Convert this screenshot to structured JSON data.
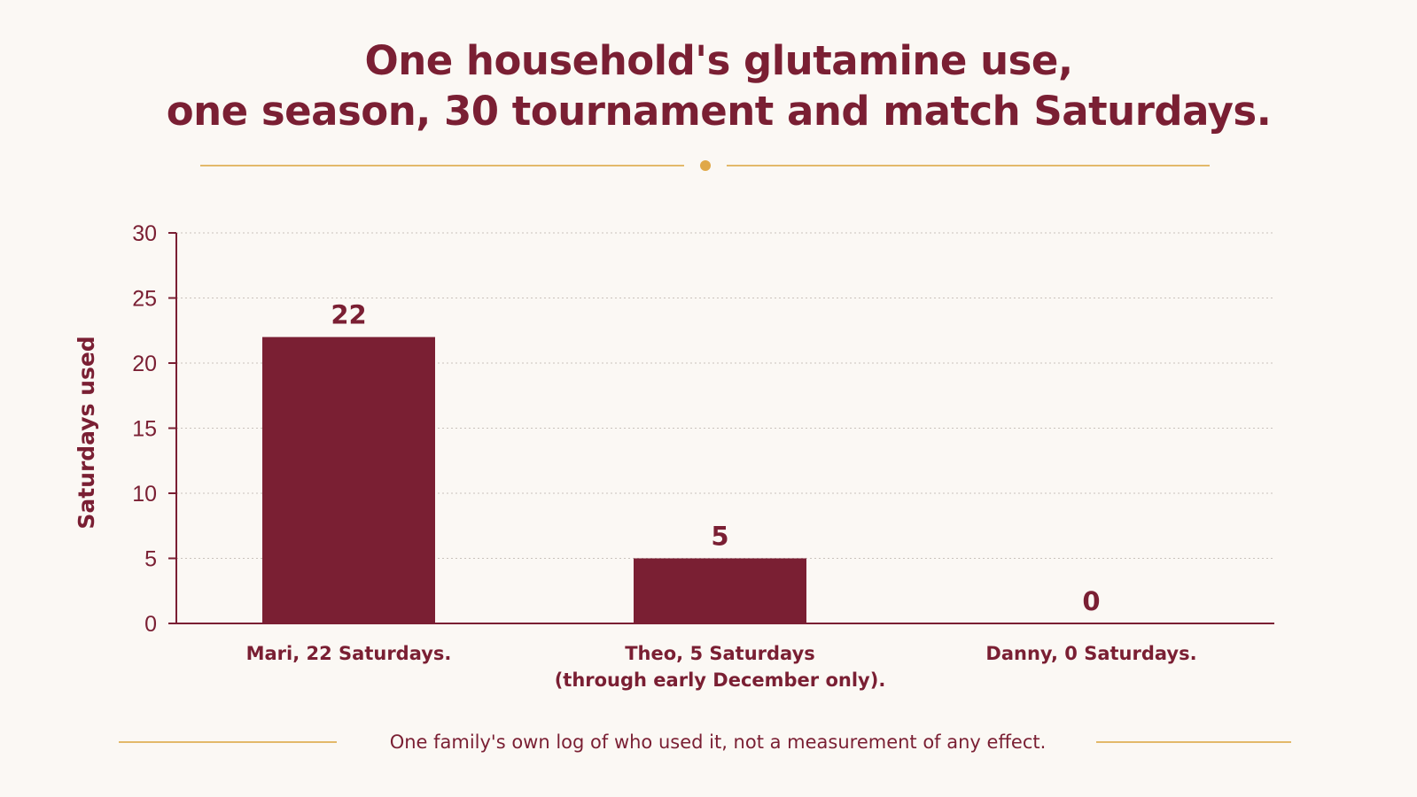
{
  "header": {
    "title_line_1": "One household's glutamine use,",
    "title_line_2": "one season, 30 tournament and match Saturdays."
  },
  "footnote": "One family's own log of who used it, not a measurement of any effect.",
  "colors": {
    "bar": "#7A1F33",
    "text": "#7A1F33",
    "accent": "#E0A848",
    "rule": "#E3B96A",
    "grid": "#C9C2BC",
    "background": "#FBF8F4"
  },
  "chart_data": {
    "type": "bar",
    "categories": [
      [
        "Mari, 22 Saturdays."
      ],
      [
        "Theo, 5 Saturdays",
        "(through early December only)."
      ],
      [
        "Danny, 0 Saturdays."
      ]
    ],
    "values": [
      22,
      5,
      0
    ],
    "value_labels": [
      "22",
      "5",
      "0"
    ],
    "title": "One household's glutamine use, one season, 30 tournament and match Saturdays.",
    "xlabel": "",
    "ylabel": "Saturdays used",
    "ylim": [
      0,
      30
    ],
    "yticks": [
      0,
      5,
      10,
      15,
      20,
      25,
      30
    ],
    "grid": true,
    "legend": "none"
  }
}
